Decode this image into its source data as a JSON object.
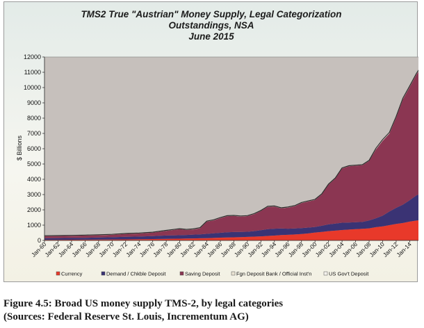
{
  "chart_data": {
    "type": "area",
    "stacked": true,
    "title": [
      "TMS2 True \"Austrian\" Money Supply, Legal Categorization",
      "Outstandings, NSA",
      "June 2015"
    ],
    "xlabel": "",
    "ylabel": "$ Billions",
    "ylim": [
      0,
      12000
    ],
    "yticks": [
      0,
      1000,
      2000,
      3000,
      4000,
      5000,
      6000,
      7000,
      8000,
      9000,
      10000,
      11000,
      12000
    ],
    "xlim": [
      1960,
      2015.5
    ],
    "xtick_labels": [
      "Jan-60",
      "Jan-62",
      "Jan-64",
      "Jan-66",
      "Jan-68",
      "Jan-70",
      "Jan-72",
      "Jan-74",
      "Jan-76",
      "Jan-78",
      "Jan-80",
      "Jan-82",
      "Jan-84",
      "Jan-86",
      "Jan-88",
      "Jan-90",
      "Jan-92",
      "Jan-94",
      "Jan-96",
      "Jan-98",
      "Jan-00",
      "Jan-02",
      "Jan-04",
      "Jan-06",
      "Jan-08",
      "Jan-10",
      "Jan-12",
      "Jan-14"
    ],
    "x": [
      1960,
      1962,
      1964,
      1966,
      1968,
      1970,
      1972,
      1974,
      1976,
      1978,
      1979.5,
      1980,
      1981,
      1982,
      1983,
      1984,
      1985,
      1986,
      1987,
      1988,
      1989,
      1990,
      1991,
      1992,
      1993,
      1994,
      1995,
      1996,
      1997,
      1998,
      1999,
      2000,
      2001,
      2002,
      2003,
      2004,
      2005,
      2006,
      2007,
      2008,
      2009,
      2010,
      2011,
      2012,
      2013,
      2014,
      2015,
      2015.5
    ],
    "legend_position": "bottom",
    "series": [
      {
        "name": "Currency",
        "color": "#e8392a",
        "values": [
          40,
          43,
          47,
          52,
          58,
          63,
          70,
          80,
          90,
          105,
          112,
          115,
          123,
          130,
          140,
          150,
          165,
          180,
          195,
          205,
          215,
          230,
          250,
          270,
          295,
          320,
          350,
          370,
          390,
          420,
          460,
          520,
          560,
          610,
          640,
          680,
          710,
          740,
          760,
          790,
          870,
          920,
          1000,
          1080,
          1140,
          1230,
          1300,
          1330
        ]
      },
      {
        "name": "Demand / Chkble Deposit",
        "color": "#3a3374",
        "values": [
          110,
          112,
          115,
          120,
          135,
          145,
          165,
          175,
          190,
          220,
          225,
          230,
          235,
          250,
          260,
          280,
          300,
          320,
          340,
          345,
          340,
          340,
          360,
          400,
          440,
          450,
          430,
          400,
          390,
          385,
          380,
          360,
          400,
          440,
          460,
          480,
          460,
          450,
          450,
          520,
          580,
          700,
          890,
          1050,
          1200,
          1400,
          1650,
          1700
        ]
      },
      {
        "name": "Saving Deposit",
        "color": "#8b3652",
        "values": [
          130,
          135,
          140,
          150,
          150,
          160,
          190,
          200,
          230,
          300,
          370,
          390,
          330,
          340,
          400,
          800,
          850,
          960,
          1050,
          1050,
          1010,
          1020,
          1110,
          1260,
          1460,
          1450,
          1320,
          1380,
          1460,
          1640,
          1710,
          1770,
          2050,
          2600,
          2950,
          3550,
          3680,
          3700,
          3710,
          3890,
          4500,
          4900,
          5100,
          5900,
          6900,
          7400,
          7900,
          8150
        ]
      },
      {
        "name": "Fgn Deposit Bank / Official Inst'n",
        "color": "#e9e3d3",
        "values": [
          10,
          10,
          10,
          10,
          10,
          10,
          10,
          10,
          10,
          15,
          15,
          15,
          15,
          15,
          15,
          15,
          15,
          15,
          15,
          15,
          15,
          15,
          15,
          15,
          15,
          15,
          15,
          15,
          15,
          15,
          15,
          15,
          15,
          15,
          15,
          15,
          15,
          15,
          15,
          15,
          15,
          15,
          15,
          15,
          15,
          15,
          15,
          15
        ]
      },
      {
        "name": "US Gov't Deposit",
        "color": "#f4f2ec",
        "values": [
          20,
          20,
          20,
          20,
          20,
          20,
          20,
          20,
          20,
          20,
          20,
          20,
          20,
          20,
          20,
          20,
          20,
          20,
          20,
          20,
          20,
          20,
          20,
          20,
          20,
          20,
          20,
          20,
          20,
          20,
          20,
          20,
          20,
          20,
          20,
          20,
          20,
          20,
          20,
          20,
          60,
          60,
          60,
          60,
          60,
          60,
          60,
          60
        ]
      }
    ]
  },
  "caption": {
    "line1": "Figure 4.5: Broad US money supply TMS-2, by legal categories",
    "line2": "(Sources: Federal Reserve St. Louis, Incrementum AG)"
  }
}
